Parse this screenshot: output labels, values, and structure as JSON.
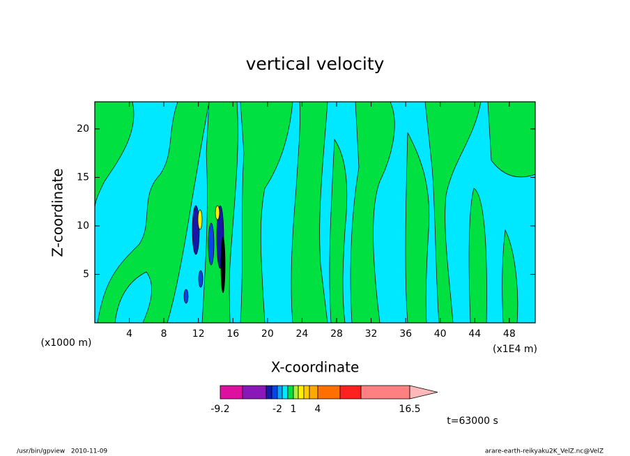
{
  "chart_data": {
    "type": "contour",
    "title": "vertical velocity",
    "x_label": "X-coordinate",
    "y_label": "Z-coordinate",
    "x_unit": "(x1E4 m)",
    "y_unit": "(x1000 m)",
    "xlim": [
      0,
      51
    ],
    "xticks": [
      4,
      8,
      12,
      16,
      20,
      24,
      28,
      32,
      36,
      40,
      44,
      48
    ],
    "ylim": [
      0,
      22.8
    ],
    "yticks": [
      5,
      10,
      15,
      20
    ],
    "colorbar": {
      "colors": [
        "#dd10a0",
        "#8a18b8",
        "#1818a8",
        "#0a44e8",
        "#00a8ff",
        "#00e8ff",
        "#00e040",
        "#a8f040",
        "#fff000",
        "#ffcc00",
        "#ffa800",
        "#ff7000",
        "#ff2020",
        "#ff8080"
      ],
      "extend_color": "#ffb8b8",
      "labels": [
        -9.2,
        -2,
        1,
        4,
        16.5
      ]
    },
    "time_label": "t=63000 s",
    "footer_left": "/usr/bin/gpview   2010-11-09",
    "footer_right": "arare-earth-reikyaku2K_VelZ.nc@VelZ"
  }
}
